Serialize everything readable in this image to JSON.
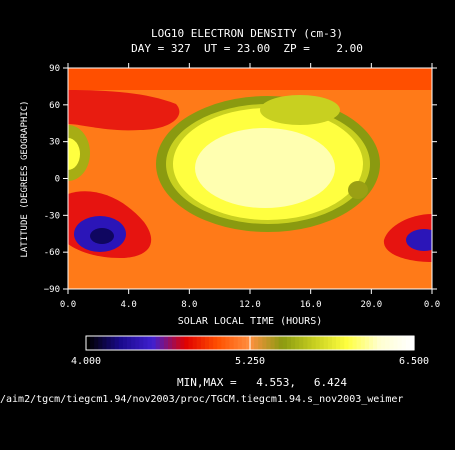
{
  "chart_data": {
    "type": "heatmap",
    "title": "LOG10 ELECTRON DENSITY (cm-3)",
    "subtitle": "DAY = 327  UT = 23.00  ZP =    2.00",
    "xlabel": "SOLAR LOCAL TIME (HOURS)",
    "ylabel": "LATITUDE (DEGREES GEOGRAPHIC)",
    "x_ticks": [
      "0.0",
      "4.0",
      "8.0",
      "12.0",
      "16.0",
      "20.0",
      "0.0"
    ],
    "y_ticks": [
      "90",
      "60",
      "30",
      "0",
      "-30",
      "-60",
      "-90"
    ],
    "x_range": [
      0,
      24
    ],
    "y_range": [
      -90,
      90
    ],
    "colorbar": {
      "labels": [
        "4.000",
        "5.250",
        "6.500"
      ],
      "range": [
        4.0,
        6.5
      ]
    },
    "minmax_label": "MIN,MAX =",
    "min_value": "4.553,",
    "max_value": "6.424",
    "min": 4.553,
    "max": 6.424,
    "source_path": "/aim2/tgcm/tiegcm1.94/nov2003/proc/TGCM.tiegcm1.94.s_nov2003_weimer",
    "colormap": [
      "#000000",
      "#1a0a8c",
      "#4020d0",
      "#e00000",
      "#ff5000",
      "#ff9040",
      "#8a9a10",
      "#c8d020",
      "#ffff40",
      "#ffffd0",
      "#ffffff"
    ]
  }
}
